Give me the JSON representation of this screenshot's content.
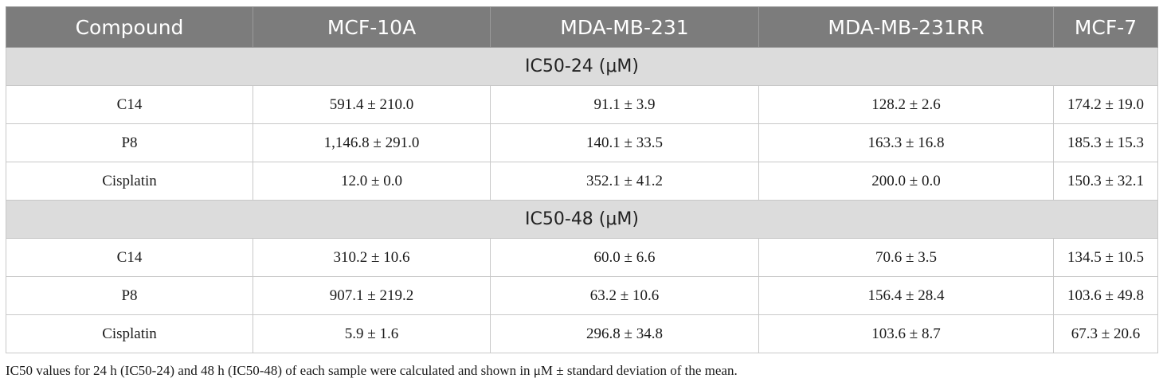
{
  "table": {
    "headers": [
      "Compound",
      "MCF-10A",
      "MDA-MB-231",
      "MDA-MB-231RR",
      "MCF-7"
    ],
    "sections": [
      {
        "title": "IC50-24 (μM)",
        "rows": [
          [
            "C14",
            "591.4 ± 210.0",
            "91.1 ± 3.9",
            "128.2 ± 2.6",
            "174.2 ± 19.0"
          ],
          [
            "P8",
            "1,146.8 ± 291.0",
            "140.1 ± 33.5",
            "163.3 ± 16.8",
            "185.3 ± 15.3"
          ],
          [
            "Cisplatin",
            "12.0 ± 0.0",
            "352.1 ± 41.2",
            "200.0 ± 0.0",
            "150.3 ± 32.1"
          ]
        ]
      },
      {
        "title": "IC50-48 (μM)",
        "rows": [
          [
            "C14",
            "310.2 ± 10.6",
            "60.0 ± 6.6",
            "70.6 ± 3.5",
            "134.5 ± 10.5"
          ],
          [
            "P8",
            "907.1 ± 219.2",
            "63.2 ± 10.6",
            "156.4 ± 28.4",
            "103.6 ± 49.8"
          ],
          [
            "Cisplatin",
            "5.9 ± 1.6",
            "296.8 ± 34.8",
            "103.6 ± 8.7",
            "67.3 ± 20.6"
          ]
        ]
      }
    ]
  },
  "footnote": "IC50 values for 24 h (IC50-24) and 48 h (IC50-48) of each sample were calculated and shown in μM ± standard deviation of the mean.",
  "colors": {
    "header_bg": "#7c7c7c",
    "section_bg": "#dcdcdc",
    "border": "#c8c8c8"
  }
}
